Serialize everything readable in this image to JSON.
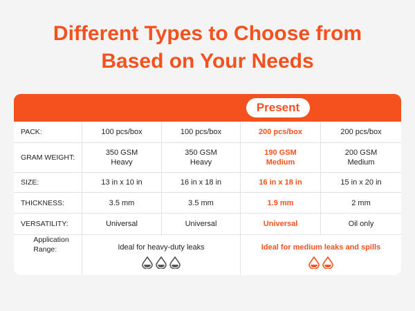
{
  "title_lines": [
    "Different Types to Choose from",
    "Based on Your Needs"
  ],
  "highlight": "Present",
  "rows": [
    {
      "label": "PACK:",
      "cells": [
        "100 pcs/box",
        "100 pcs/box",
        "200 pcs/box",
        "200 pcs/box"
      ]
    },
    {
      "label": "GRAM WEIGHT:",
      "cells": [
        "350 GSM\nHeavy",
        "350 GSM\nHeavy",
        "190 GSM\nMedium",
        "200 GSM\nMedium"
      ]
    },
    {
      "label": "SIZE:",
      "cells": [
        "13 in x 10 in",
        "16 in x 18 in",
        "16 in x 18 in",
        "15 in x 20 in"
      ]
    },
    {
      "label": "THICKNESS:",
      "cells": [
        "3.5 mm",
        "3.5 mm",
        "1.9 mm",
        "2 mm"
      ]
    },
    {
      "label": "VERSATILITY:",
      "cells": [
        "Universal",
        "Universal",
        "Universal",
        "Oil only"
      ]
    }
  ],
  "application": {
    "label": "Application\nRange:",
    "left": "Ideal for heavy-duty leaks",
    "right": "Ideal for medium leaks and spills"
  }
}
